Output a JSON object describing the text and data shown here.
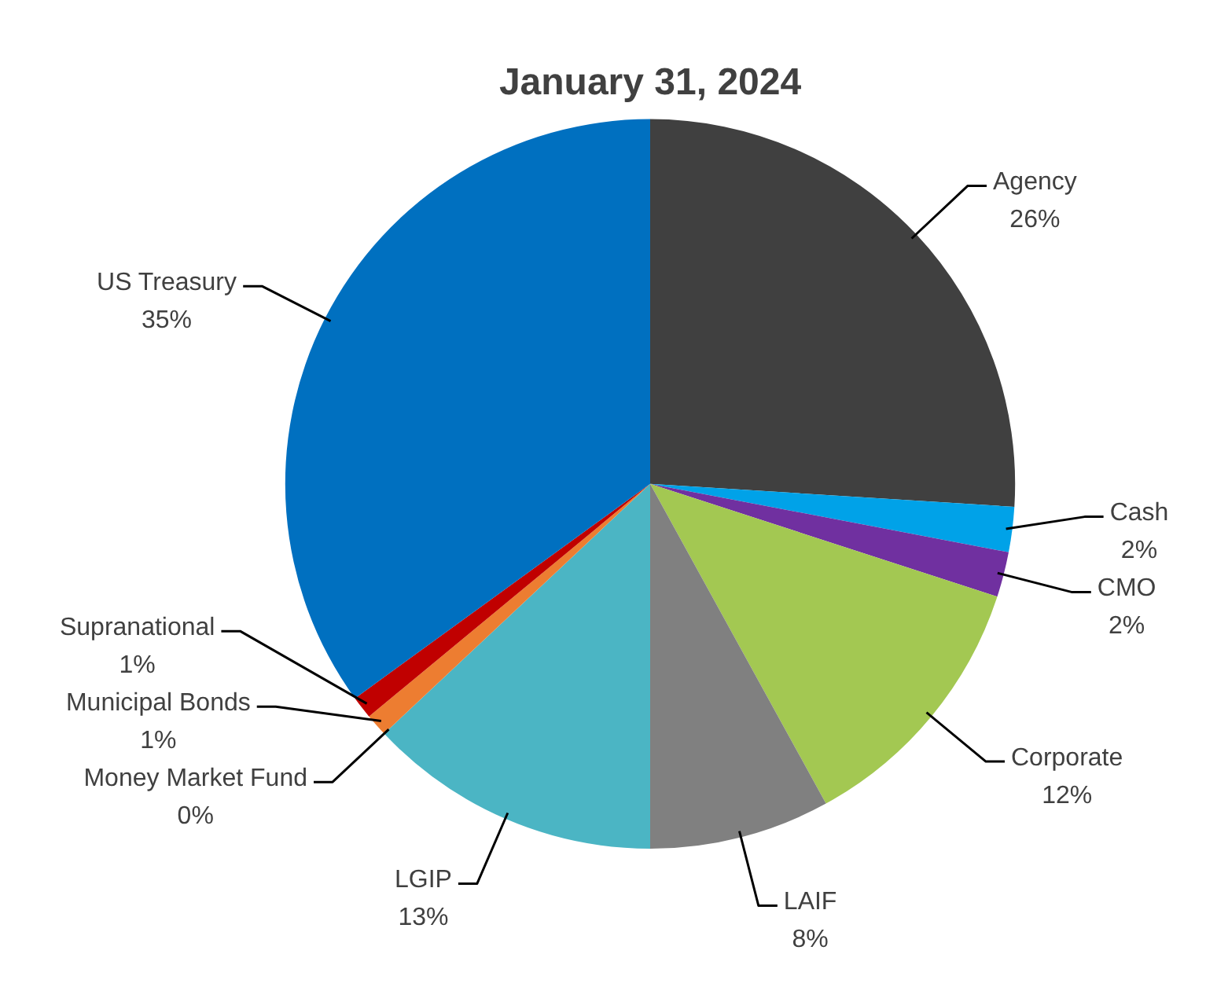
{
  "chart_data": {
    "type": "pie",
    "title": "January 31, 2024",
    "categories": [
      "Agency",
      "Cash",
      "CMO",
      "Corporate",
      "LAIF",
      "LGIP",
      "Money Market Fund",
      "Municipal Bonds",
      "Supranational",
      "US Treasury"
    ],
    "values": [
      26,
      2,
      2,
      12,
      8,
      13,
      0,
      1,
      1,
      35
    ],
    "colors": [
      "#404040",
      "#00a2e8",
      "#7030a0",
      "#a3c852",
      "#808080",
      "#4bb5c4",
      "#f4b183",
      "#ed7d31",
      "#c00000",
      "#0070c0"
    ],
    "value_labels": [
      "26%",
      "2%",
      "2%",
      "12%",
      "8%",
      "13%",
      "0%",
      "1%",
      "1%",
      "35%"
    ],
    "legend": false
  }
}
